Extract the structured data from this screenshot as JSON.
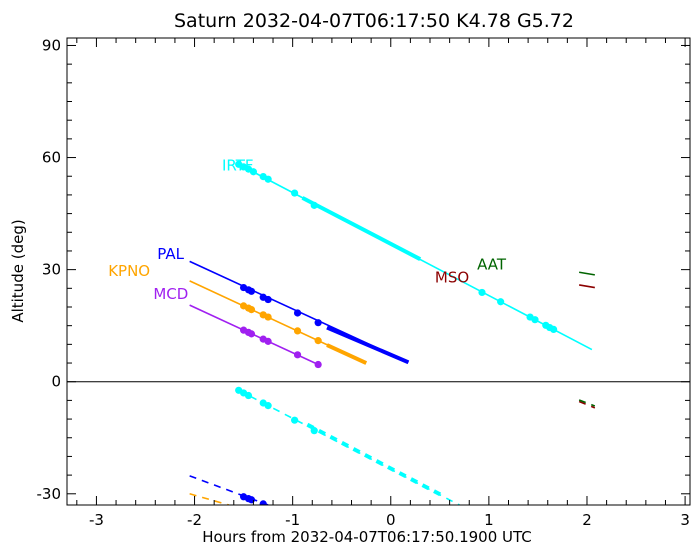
{
  "chart_data": {
    "type": "line",
    "title": "Saturn 2032-04-07T06:17:50  K4.78  G5.72",
    "xlabel": "Hours from 2032-04-07T06:17:50.1900 UTC",
    "ylabel": "Altitude (deg)",
    "xlim": [
      -3.3,
      3.05
    ],
    "ylim": [
      -33,
      92
    ],
    "xticks": [
      "-3",
      "-2",
      "-1",
      "0",
      "1",
      "2",
      "3"
    ],
    "yticks": [
      "90",
      "60",
      "30",
      "0",
      "-30"
    ],
    "grid": false,
    "zero_line": true,
    "series": [
      {
        "name": "IRTF",
        "color": "#00ffff",
        "label_at": [
          -1.72,
          56.5
        ],
        "solid": [
          [
            -1.55,
            58.2
          ],
          [
            2.05,
            8.6
          ]
        ],
        "thick": [
          [
            -0.9,
            49.2
          ],
          [
            0.3,
            32.8
          ]
        ],
        "dashed": [
          [
            -1.55,
            -2.3
          ],
          [
            0.7,
            -33
          ]
        ],
        "thick_dashed": [
          [
            -0.85,
            -11.5
          ],
          [
            0.55,
            -30.8
          ]
        ],
        "points": [
          [
            -1.55,
            58.2
          ],
          [
            -1.5,
            57.5
          ],
          [
            -1.45,
            56.9
          ],
          [
            -1.4,
            56.2
          ],
          [
            -1.3,
            54.9
          ],
          [
            -1.25,
            54.2
          ],
          [
            -0.98,
            50.5
          ],
          [
            -0.78,
            47.2
          ],
          [
            0.93,
            23.9
          ],
          [
            1.12,
            21.4
          ],
          [
            1.42,
            17.3
          ],
          [
            1.47,
            16.6
          ],
          [
            1.58,
            15.1
          ],
          [
            1.62,
            14.5
          ],
          [
            1.66,
            14.0
          ]
        ],
        "points_below": [
          [
            -1.55,
            -2.3
          ],
          [
            -1.5,
            -3.0
          ],
          [
            -1.45,
            -3.7
          ],
          [
            -1.3,
            -5.7
          ],
          [
            -1.25,
            -6.4
          ],
          [
            -0.98,
            -10.3
          ],
          [
            -0.78,
            -13.1
          ]
        ]
      },
      {
        "name": "PAL",
        "color": "#0000ff",
        "label_at": [
          -2.38,
          32.8
        ],
        "solid": [
          [
            -2.05,
            32.2
          ],
          [
            0.18,
            5.2
          ]
        ],
        "thick": [
          [
            -0.65,
            14.5
          ],
          [
            0.18,
            5.2
          ]
        ],
        "dashed": [
          [
            -2.05,
            -25.2
          ],
          [
            -1.25,
            -33
          ]
        ],
        "thick_dashed": [],
        "points": [
          [
            -1.5,
            25.2
          ],
          [
            -1.45,
            24.6
          ],
          [
            -1.42,
            24.2
          ],
          [
            -1.3,
            22.6
          ],
          [
            -1.25,
            22.0
          ],
          [
            -0.95,
            18.4
          ],
          [
            -0.74,
            15.8
          ]
        ],
        "points_below": [
          [
            -1.5,
            -30.8
          ],
          [
            -1.45,
            -31.3
          ],
          [
            -1.42,
            -31.6
          ],
          [
            -1.3,
            -32.7
          ]
        ]
      },
      {
        "name": "KPNO",
        "color": "#ffa500",
        "label_at": [
          -2.88,
          28.3
        ],
        "solid": [
          [
            -2.05,
            27.0
          ],
          [
            -0.25,
            5.0
          ]
        ],
        "thick": [
          [
            -0.65,
            9.8
          ],
          [
            -0.25,
            5.0
          ]
        ],
        "dashed": [
          [
            -2.05,
            -30.0
          ],
          [
            -1.65,
            -33
          ]
        ],
        "thick_dashed": [],
        "points": [
          [
            -1.5,
            20.3
          ],
          [
            -1.45,
            19.7
          ],
          [
            -1.42,
            19.3
          ],
          [
            -1.3,
            17.9
          ],
          [
            -1.25,
            17.3
          ],
          [
            -0.95,
            13.6
          ],
          [
            -0.74,
            11.0
          ]
        ],
        "points_below": []
      },
      {
        "name": "MCD",
        "color": "#a020f0",
        "label_at": [
          -2.42,
          22.2
        ],
        "solid": [
          [
            -2.05,
            20.5
          ],
          [
            -0.74,
            4.6
          ]
        ],
        "thick": [],
        "dashed": [],
        "thick_dashed": [],
        "points": [
          [
            -1.5,
            13.8
          ],
          [
            -1.45,
            13.2
          ],
          [
            -1.42,
            12.8
          ],
          [
            -1.3,
            11.4
          ],
          [
            -1.25,
            10.8
          ],
          [
            -0.95,
            7.2
          ],
          [
            -0.74,
            4.6
          ]
        ],
        "points_below": []
      },
      {
        "name": "MSO",
        "color": "#8b0000",
        "label_at": [
          0.45,
          26.5
        ],
        "solid": [
          [
            1.92,
            25.9
          ],
          [
            2.08,
            25.2
          ]
        ],
        "thick": [],
        "dashed": [
          [
            1.92,
            -5.3
          ],
          [
            2.08,
            -7.0
          ]
        ],
        "thick_dashed": [],
        "points": [],
        "points_below": []
      },
      {
        "name": "AAT",
        "color": "#006400",
        "label_at": [
          0.88,
          30.0
        ],
        "solid": [
          [
            1.92,
            29.3
          ],
          [
            2.08,
            28.6
          ]
        ],
        "thick": [],
        "dashed": [
          [
            1.92,
            -4.9
          ],
          [
            2.08,
            -6.5
          ]
        ],
        "thick_dashed": [],
        "points": [],
        "points_below": []
      }
    ]
  }
}
